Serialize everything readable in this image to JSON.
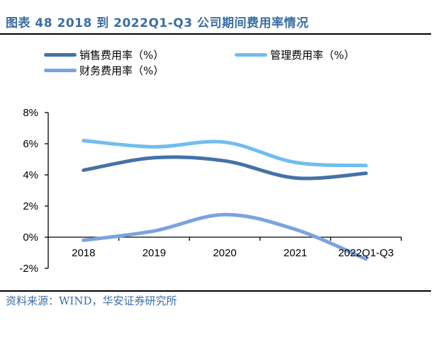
{
  "title": "图表 48 2018 到 2022Q1-Q3 公司期间费用率情况",
  "source": "资料来源：WIND，华安证券研究所",
  "chart_data": {
    "type": "line",
    "title": "图表 48 2018 到 2022Q1-Q3 公司期间费用率情况",
    "xlabel": "",
    "ylabel": "",
    "categories": [
      "2018",
      "2019",
      "2020",
      "2021",
      "2022Q1-Q3"
    ],
    "ylim": [
      -2,
      8
    ],
    "yticks": [
      -2,
      0,
      2,
      4,
      6,
      8
    ],
    "ytick_labels": [
      "-2%",
      "0%",
      "2%",
      "4%",
      "6%",
      "8%"
    ],
    "grid": false,
    "smooth": true,
    "legend_position": "top",
    "series": [
      {
        "name": "销售费用率（%）",
        "color": "#4472a8",
        "values": [
          4.3,
          5.1,
          4.9,
          3.8,
          4.1
        ]
      },
      {
        "name": "管理费用率（%）",
        "color": "#70bdf0",
        "values": [
          6.2,
          5.8,
          6.1,
          4.8,
          4.6
        ]
      },
      {
        "name": "财务费用率（%）",
        "color": "#7ba3de",
        "values": [
          -0.2,
          0.4,
          1.45,
          0.5,
          -1.4
        ]
      }
    ]
  }
}
